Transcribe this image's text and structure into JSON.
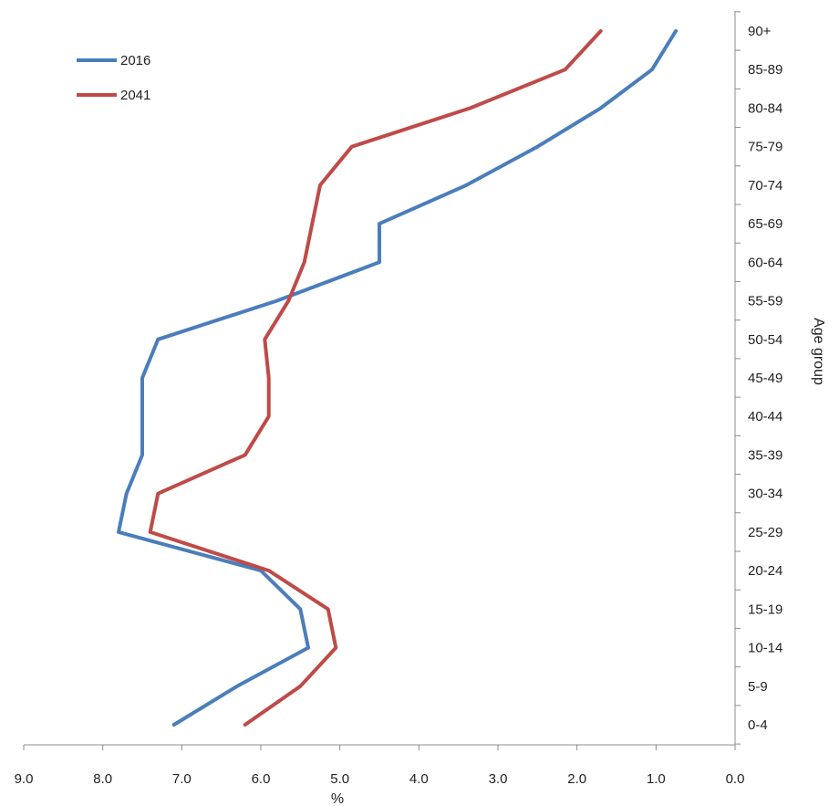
{
  "chart_data": {
    "type": "line",
    "orientation": "horizontal-values",
    "title": "",
    "xlabel": "%",
    "ylabel": "Age group",
    "x_reversed": true,
    "xlim": [
      0,
      9
    ],
    "x_ticks": [
      "9.0",
      "8.0",
      "7.0",
      "6.0",
      "5.0",
      "4.0",
      "3.0",
      "2.0",
      "1.0",
      "0.0"
    ],
    "categories": [
      "0-4",
      "5-9",
      "10-14",
      "15-19",
      "20-24",
      "25-29",
      "30-34",
      "35-39",
      "40-44",
      "45-49",
      "50-54",
      "55-59",
      "60-64",
      "65-69",
      "70-74",
      "75-79",
      "80-84",
      "85-89",
      "90+"
    ],
    "legend_position": "top-left",
    "grid": false,
    "series": [
      {
        "name": "2016",
        "color": "#4a7ebb",
        "values": [
          7.1,
          6.3,
          5.4,
          5.5,
          6.0,
          7.8,
          7.7,
          7.5,
          7.5,
          7.5,
          7.3,
          5.8,
          4.5,
          4.5,
          3.4,
          2.5,
          1.7,
          1.05,
          0.75
        ]
      },
      {
        "name": "2041",
        "color": "#be4b48",
        "values": [
          6.2,
          5.5,
          5.05,
          5.15,
          5.9,
          7.4,
          7.3,
          6.2,
          5.9,
          5.9,
          5.95,
          5.65,
          5.45,
          5.35,
          5.25,
          4.85,
          3.35,
          2.15,
          1.7
        ]
      }
    ]
  }
}
